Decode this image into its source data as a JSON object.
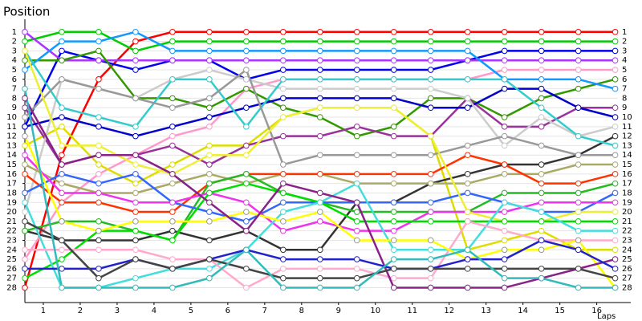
{
  "chart_data": {
    "type": "line",
    "y_title": "Position",
    "x_title": "Laps",
    "x": [
      0,
      1,
      2,
      3,
      4,
      5,
      6,
      7,
      8,
      9,
      10,
      11,
      12,
      13,
      14,
      15,
      16
    ],
    "xlim": [
      0,
      16.4
    ],
    "ylim": [
      29.4,
      0
    ],
    "xticks": [
      {
        "value": 0.5,
        "label": "1"
      },
      {
        "value": 1.5,
        "label": "2"
      },
      {
        "value": 2.5,
        "label": "3"
      },
      {
        "value": 3.5,
        "label": "4"
      },
      {
        "value": 4.5,
        "label": "5"
      },
      {
        "value": 5.5,
        "label": "6"
      },
      {
        "value": 6.5,
        "label": "7"
      },
      {
        "value": 7.5,
        "label": "8"
      },
      {
        "value": 8.5,
        "label": "9"
      },
      {
        "value": 9.5,
        "label": "10"
      },
      {
        "value": 10.5,
        "label": "11"
      },
      {
        "value": 11.5,
        "label": "12"
      },
      {
        "value": 12.5,
        "label": "13"
      },
      {
        "value": 13.5,
        "label": "14"
      },
      {
        "value": 14.5,
        "label": "15"
      },
      {
        "value": 15.5,
        "label": "16"
      }
    ],
    "yticks": [
      1,
      2,
      3,
      4,
      5,
      6,
      7,
      8,
      9,
      10,
      11,
      12,
      13,
      14,
      15,
      16,
      17,
      18,
      19,
      20,
      21,
      22,
      23,
      24,
      25,
      26,
      27,
      28
    ],
    "grid": true,
    "series": [
      {
        "color": "#ff0000",
        "values": [
          28,
          14,
          6,
          2,
          1,
          1,
          1,
          1,
          1,
          1,
          1,
          1,
          1,
          1,
          1,
          1,
          1
        ]
      },
      {
        "color": "#00cc00",
        "values": [
          2,
          1,
          1,
          3,
          2,
          2,
          2,
          2,
          2,
          2,
          2,
          2,
          2,
          2,
          2,
          2,
          2
        ]
      },
      {
        "color": "#0000ee",
        "values": [
          11,
          3,
          4,
          5,
          4,
          4,
          6,
          5,
          5,
          5,
          5,
          5,
          4,
          3,
          3,
          3,
          3
        ]
      },
      {
        "color": "#aa33ff",
        "values": [
          1,
          4,
          4,
          4,
          4,
          4,
          4,
          4,
          4,
          4,
          4,
          4,
          4,
          4,
          4,
          4,
          4
        ]
      },
      {
        "color": "#ff99cc",
        "values": [
          25,
          19,
          16,
          14,
          12,
          11,
          7,
          6,
          6,
          6,
          6,
          6,
          6,
          5,
          5,
          5,
          5
        ]
      },
      {
        "color": "#339900",
        "values": [
          4,
          4,
          3,
          8,
          8,
          9,
          7,
          9,
          10,
          12,
          11,
          8,
          8,
          10,
          8,
          7,
          6
        ]
      },
      {
        "color": "#1199ff",
        "values": [
          5,
          2,
          2,
          1,
          3,
          3,
          3,
          3,
          3,
          3,
          3,
          3,
          3,
          6,
          6,
          6,
          7
        ]
      },
      {
        "color": "#dddd00",
        "values": [
          13,
          11,
          15,
          17,
          15,
          13,
          13,
          10,
          9,
          9,
          9,
          12,
          24,
          23,
          22,
          24,
          24
        ]
      },
      {
        "color": "#993399",
        "values": [
          9,
          15,
          14,
          14,
          13,
          15,
          13,
          12,
          12,
          11,
          12,
          12,
          8,
          11,
          11,
          9,
          9
        ]
      },
      {
        "color": "#0000cc",
        "values": [
          11,
          10,
          11,
          12,
          11,
          10,
          9,
          8,
          8,
          8,
          8,
          9,
          9,
          7,
          7,
          9,
          10
        ]
      },
      {
        "color": "#cccccc",
        "values": [
          20,
          6,
          7,
          8,
          6,
          5,
          6,
          7,
          7,
          7,
          7,
          7,
          8,
          13,
          10,
          12,
          11
        ]
      },
      {
        "color": "#333333",
        "values": [
          22,
          23,
          23,
          23,
          22,
          23,
          22,
          24,
          24,
          19,
          19,
          17,
          16,
          15,
          15,
          14,
          12
        ]
      },
      {
        "color": "#33cccc",
        "values": [
          3,
          9,
          10,
          11,
          6,
          6,
          11,
          6,
          6,
          6,
          6,
          6,
          6,
          6,
          9,
          12,
          13
        ]
      },
      {
        "color": "#999999",
        "values": [
          10,
          6,
          7,
          8,
          9,
          8,
          5,
          15,
          14,
          14,
          14,
          14,
          13,
          12,
          13,
          14,
          14
        ]
      },
      {
        "color": "#aaaa66",
        "values": [
          15,
          17,
          18,
          18,
          17,
          16,
          17,
          16,
          16,
          17,
          17,
          17,
          17,
          16,
          16,
          15,
          15
        ]
      },
      {
        "color": "#ff3300",
        "values": [
          16,
          19,
          19,
          20,
          20,
          17,
          16,
          16,
          16,
          16,
          16,
          16,
          14,
          15,
          17,
          17,
          16
        ]
      },
      {
        "color": "#22bb22",
        "values": [
          22,
          21,
          21,
          22,
          23,
          17,
          16,
          18,
          19,
          20,
          20,
          20,
          20,
          18,
          18,
          18,
          17
        ]
      },
      {
        "color": "#3366ff",
        "values": [
          18,
          16,
          17,
          16,
          19,
          20,
          21,
          19,
          19,
          19,
          19,
          19,
          18,
          19,
          20,
          20,
          18
        ]
      },
      {
        "color": "#ee33ee",
        "values": [
          14,
          18,
          18,
          19,
          19,
          18,
          19,
          22,
          21,
          22,
          22,
          20,
          20,
          20,
          19,
          19,
          19
        ]
      },
      {
        "color": "#eeee33",
        "values": [
          3,
          13,
          13,
          15,
          16,
          14,
          14,
          10,
          9,
          9,
          9,
          12,
          20,
          21,
          21,
          20,
          20
        ]
      },
      {
        "color": "#00dd00",
        "values": [
          27,
          25,
          22,
          22,
          23,
          18,
          17,
          18,
          19,
          21,
          21,
          21,
          21,
          21,
          21,
          21,
          21
        ]
      },
      {
        "color": "#44dddd",
        "values": [
          19,
          28,
          28,
          27,
          26,
          26,
          24,
          20,
          19,
          17,
          24,
          24,
          24,
          19,
          20,
          22,
          22
        ]
      },
      {
        "color": "#ffaacc",
        "values": [
          24,
          24,
          24,
          24,
          25,
          25,
          28,
          26,
          26,
          26,
          27,
          27,
          21,
          22,
          23,
          23,
          23
        ]
      },
      {
        "color": "#ffff00",
        "values": [
          12,
          21,
          22,
          21,
          21,
          21,
          20,
          21,
          20,
          23,
          23,
          23,
          25,
          24,
          24,
          23,
          28
        ]
      },
      {
        "color": "#882288",
        "values": [
          8,
          15,
          14,
          14,
          16,
          19,
          22,
          17,
          18,
          19,
          28,
          28,
          28,
          28,
          27,
          26,
          25
        ]
      },
      {
        "color": "#2222cc",
        "values": [
          26,
          26,
          26,
          25,
          26,
          25,
          24,
          25,
          25,
          25,
          26,
          26,
          25,
          25,
          23,
          24,
          26
        ]
      },
      {
        "color": "#444444",
        "values": [
          21,
          23,
          27,
          25,
          26,
          25,
          26,
          27,
          27,
          27,
          26,
          26,
          26,
          26,
          26,
          26,
          27
        ]
      },
      {
        "color": "#33bbbb",
        "values": [
          7,
          28,
          28,
          28,
          28,
          27,
          24,
          28,
          28,
          28,
          25,
          25,
          24,
          27,
          27,
          28,
          28
        ]
      }
    ]
  }
}
